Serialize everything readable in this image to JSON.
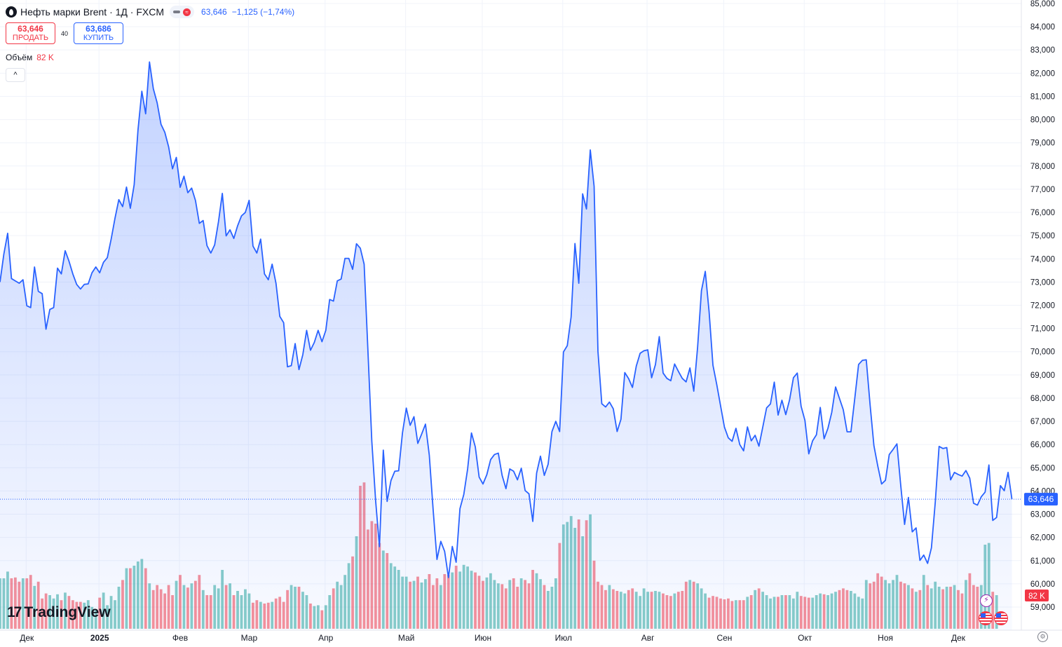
{
  "header": {
    "title": "Нефть марки Brent · 1Д · FXCM",
    "last_price": "63,646",
    "change": "−1,125 (−1,74%)"
  },
  "trade": {
    "sell_price": "63,646",
    "sell_label": "ПРОДАТЬ",
    "spread": "40",
    "buy_price": "63,686",
    "buy_label": "КУПИТЬ"
  },
  "volume_legend": {
    "label": "Объём",
    "value": "82 K"
  },
  "collapse_symbol": "^",
  "brand": {
    "name": "TradingView"
  },
  "icons": {
    "symbol": "oil-drop-icon",
    "status": "market-status-icon",
    "collapse": "chevron-up-icon",
    "logo": "tradingview-logo-icon",
    "event": "lightning-icon",
    "flag": "us-flag-icon",
    "settings": "settings-icon"
  },
  "colors": {
    "line": "#2962ff",
    "area": "#2962ff",
    "up_volume": "#26a69a",
    "down_volume": "#f23645",
    "axis_text": "#131722",
    "grid": "#f0f3fa"
  },
  "chart_data": {
    "type": "area",
    "price_axis": {
      "min": 59000,
      "max": 85000,
      "ticks": [
        "59,000",
        "60,000",
        "61,000",
        "62,000",
        "63,000",
        "64,000",
        "65,000",
        "66,000",
        "67,000",
        "68,000",
        "69,000",
        "70,000",
        "71,000",
        "72,000",
        "73,000",
        "74,000",
        "75,000",
        "76,000",
        "77,000",
        "78,000",
        "79,000",
        "80,000",
        "81,000",
        "82,000",
        "83,000",
        "84,000",
        "85,000"
      ],
      "last_label": "63,646",
      "last_value": 63646,
      "volume_label": "82 K"
    },
    "time_axis": {
      "labels": [
        {
          "label": "Дек",
          "index": 7
        },
        {
          "label": "2025",
          "index": 26
        },
        {
          "label": "Фев",
          "index": 47
        },
        {
          "label": "Мар",
          "index": 65
        },
        {
          "label": "Апр",
          "index": 85
        },
        {
          "label": "Май",
          "index": 106
        },
        {
          "label": "Июн",
          "index": 126
        },
        {
          "label": "Июл",
          "index": 147
        },
        {
          "label": "Авг",
          "index": 169
        },
        {
          "label": "Сен",
          "index": 189
        },
        {
          "label": "Окт",
          "index": 210
        },
        {
          "label": "Ноя",
          "index": 231
        },
        {
          "label": "Дек",
          "index": 250
        }
      ]
    },
    "series": [
      {
        "values": [
          73000,
          74200,
          75100,
          73150,
          73050,
          72950,
          73100,
          71980,
          71900,
          73650,
          72600,
          72500,
          70970,
          71820,
          71900,
          73600,
          73350,
          74350,
          73900,
          73350,
          72900,
          72700,
          72900,
          72920,
          73400,
          73650,
          73400,
          73850,
          74050,
          74850,
          75750,
          76550,
          76250,
          77090,
          76180,
          77190,
          79550,
          81220,
          80250,
          82480,
          81330,
          80720,
          79800,
          79450,
          78820,
          77880,
          78370,
          77080,
          77560,
          76850,
          77050,
          76510,
          75530,
          75650,
          74570,
          74250,
          74600,
          75600,
          76820,
          74990,
          75250,
          74880,
          75430,
          75850,
          76000,
          76520,
          74550,
          74250,
          74850,
          73350,
          73100,
          73770,
          72950,
          71520,
          71250,
          69350,
          69400,
          70350,
          69230,
          69870,
          70920,
          70060,
          70400,
          70920,
          70430,
          70920,
          72250,
          72180,
          73050,
          73130,
          74020,
          74020,
          73550,
          74650,
          74460,
          73770,
          70000,
          66150,
          63580,
          61600,
          65760,
          63550,
          64450,
          64850,
          64870,
          66500,
          67570,
          66830,
          67200,
          66050,
          66450,
          66880,
          65540,
          63200,
          61050,
          61830,
          61400,
          60270,
          61610,
          60930,
          63240,
          63850,
          64950,
          66500,
          65900,
          64600,
          64300,
          64700,
          65350,
          65570,
          65630,
          64670,
          64100,
          64950,
          64850,
          64480,
          64980,
          64020,
          63880,
          62690,
          64770,
          65500,
          64670,
          65150,
          66560,
          67000,
          66560,
          69990,
          70260,
          71500,
          74660,
          72950,
          76800,
          76150,
          78690,
          77120,
          70020,
          67760,
          67620,
          67830,
          67540,
          66560,
          67090,
          69100,
          68840,
          68460,
          69380,
          69930,
          70040,
          70080,
          68880,
          69450,
          70650,
          69080,
          68850,
          68750,
          69470,
          69150,
          68850,
          68700,
          69300,
          68300,
          70200,
          72630,
          73460,
          71720,
          69420,
          68580,
          67660,
          66750,
          66290,
          66140,
          66700,
          66000,
          65730,
          66760,
          66160,
          66400,
          65930,
          66750,
          67580,
          67750,
          68690,
          67270,
          67910,
          67290,
          67930,
          68880,
          69080,
          67650,
          67040,
          65600,
          66160,
          66420,
          67600,
          66250,
          66700,
          67390,
          68480,
          67990,
          67500,
          66550,
          66550,
          67980,
          69450,
          69630,
          69650,
          67710,
          65950,
          65080,
          64300,
          64460,
          65570,
          65790,
          66030,
          64230,
          62560,
          63720,
          62240,
          62410,
          61010,
          61240,
          60880,
          61550,
          63510,
          65920,
          65830,
          65870,
          64480,
          64800,
          64710,
          64640,
          64880,
          64550,
          63470,
          63390,
          63750,
          63950,
          65120,
          62730,
          62860,
          64230,
          64010,
          64800,
          63646
        ]
      }
    ],
    "volume": {
      "direction": "red = price down, green = price up",
      "max_label": "82 K",
      "values": [
        60,
        60,
        68,
        60,
        61,
        56,
        60,
        60,
        64,
        51,
        56,
        36,
        42,
        40,
        36,
        41,
        34,
        43,
        39,
        34,
        32,
        32,
        31,
        34,
        26,
        22,
        37,
        43,
        28,
        39,
        34,
        50,
        58,
        72,
        72,
        75,
        80,
        83,
        72,
        54,
        46,
        52,
        47,
        42,
        52,
        40,
        57,
        64,
        52,
        49,
        54,
        57,
        64,
        46,
        40,
        40,
        52,
        48,
        70,
        52,
        54,
        40,
        45,
        40,
        47,
        42,
        31,
        34,
        32,
        30,
        31,
        32,
        36,
        38,
        32,
        46,
        52,
        50,
        50,
        44,
        40,
        30,
        27,
        28,
        22,
        28,
        40,
        48,
        56,
        52,
        64,
        78,
        86,
        110,
        170,
        174,
        118,
        128,
        125,
        102,
        93,
        90,
        78,
        74,
        70,
        62,
        62,
        56,
        57,
        62,
        55,
        59,
        65,
        52,
        60,
        52,
        65,
        64,
        67,
        75,
        68,
        76,
        74,
        69,
        67,
        63,
        57,
        61,
        66,
        58,
        54,
        53,
        48,
        58,
        60,
        50,
        60,
        58,
        54,
        70,
        66,
        59,
        52,
        45,
        50,
        60,
        102,
        124,
        127,
        134,
        120,
        130,
        110,
        129,
        136,
        81,
        56,
        52,
        46,
        52,
        47,
        45,
        44,
        42,
        46,
        48,
        44,
        39,
        48,
        44,
        44,
        45,
        44,
        42,
        40,
        39,
        42,
        44,
        45,
        56,
        58,
        56,
        54,
        48,
        42,
        37,
        39,
        38,
        36,
        35,
        36,
        33,
        34,
        34,
        34,
        38,
        40,
        46,
        48,
        44,
        40,
        36,
        38,
        38,
        40,
        40,
        40,
        36,
        44,
        39,
        38,
        37,
        37,
        40,
        42,
        41,
        40,
        42,
        44,
        46,
        48,
        46,
        45,
        42,
        38,
        36,
        58,
        54,
        56,
        66,
        62,
        58,
        54,
        58,
        64,
        56,
        54,
        52,
        48,
        44,
        46,
        64,
        52,
        48,
        56,
        50,
        47,
        50,
        50,
        52,
        46,
        42,
        58,
        66,
        52,
        50,
        52,
        100,
        102,
        44,
        40
      ]
    }
  }
}
